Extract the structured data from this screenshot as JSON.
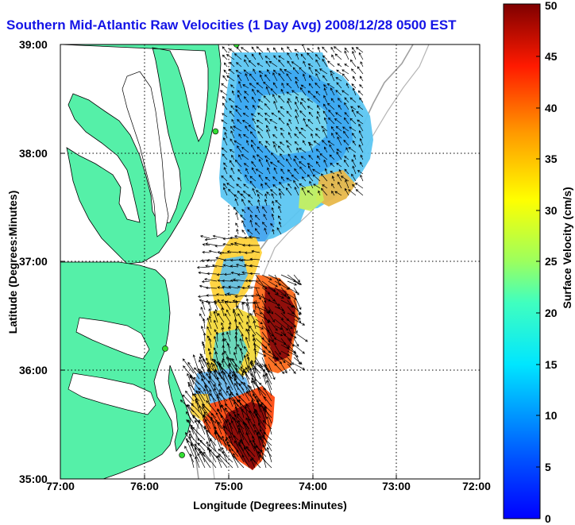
{
  "title": "Southern Mid-Atlantic Raw Velocities (1 Day Avg) 2008/12/28 0500 EST",
  "axes": {
    "xlabel": "Longitude (Degrees:Minutes)",
    "ylabel": "Latitude (Degrees:Minutes)",
    "xticks": [
      "77:00",
      "76:00",
      "75:00",
      "74:00",
      "73:00",
      "72:00"
    ],
    "yticks": [
      "39:00",
      "38:00",
      "37:00",
      "36:00",
      "35:00"
    ],
    "grid": "dotted"
  },
  "colorbar": {
    "label": "Surface Velocity (cm/s)",
    "ticks": [
      "0",
      "5",
      "10",
      "15",
      "20",
      "25",
      "30",
      "35",
      "40",
      "45",
      "50"
    ],
    "min": 0,
    "max": 50,
    "colormap": "jet"
  },
  "colors": {
    "title": "#1414e6",
    "land": "#55f0a8",
    "coastline": "#000000",
    "isobath": "#a0a0a0"
  },
  "stations": [
    {
      "lon": -74.9,
      "lat": 39.0
    },
    {
      "lon": -75.15,
      "lat": 38.2
    },
    {
      "lon": -75.75,
      "lat": 36.2
    },
    {
      "lon": -75.55,
      "lat": 35.22
    }
  ]
}
